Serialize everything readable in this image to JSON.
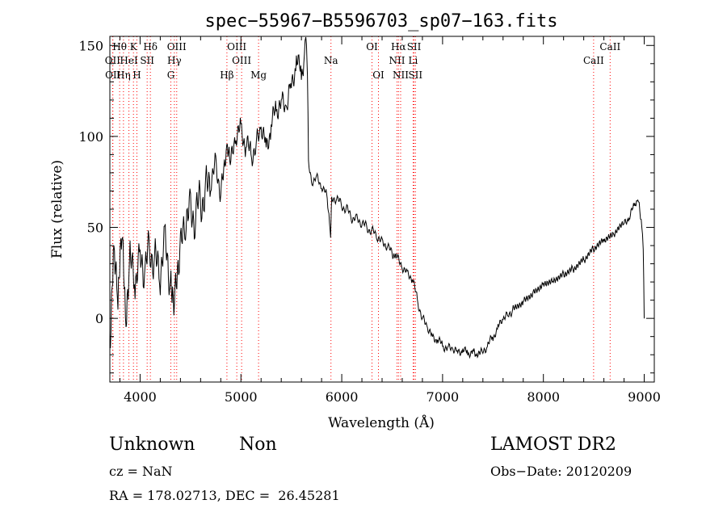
{
  "chart_data": {
    "type": "line",
    "title": "spec−55967−B5596703_sp07−163.fits",
    "xlabel": "Wavelength (Å)",
    "ylabel": "Flux (relative)",
    "xlim": [
      3700,
      9100
    ],
    "ylim": [
      -35,
      155
    ],
    "xticks": [
      4000,
      5000,
      6000,
      7000,
      8000,
      9000
    ],
    "yticks": [
      0,
      50,
      100,
      150
    ],
    "grid": false,
    "line_color": "#000000",
    "marker_color": "#ff0000",
    "series": [
      {
        "x": [
          3700,
          3740,
          3780,
          3820,
          3860,
          3900,
          3950,
          4000,
          4050,
          4100,
          4150,
          4200,
          4250,
          4300,
          4340,
          4400,
          4450,
          4500,
          4550,
          4600,
          4650,
          4700,
          4750,
          4800,
          4860,
          4900,
          4950,
          5000,
          5050,
          5100,
          5150,
          5200,
          5250,
          5300,
          5350,
          5400,
          5450,
          5500,
          5550,
          5600,
          5630,
          5650,
          5660,
          5670,
          5700,
          5750,
          5800,
          5850,
          5890,
          5900,
          5950,
          6000,
          6050,
          6100,
          6150,
          6200,
          6250,
          6300,
          6350,
          6400,
          6450,
          6500,
          6563,
          6600,
          6650,
          6700,
          6750,
          6800,
          6850,
          6900,
          6950,
          7000,
          7050,
          7100,
          7150,
          7200,
          7250,
          7300,
          7340,
          7400,
          7450,
          7500,
          7550,
          7600,
          7650,
          7700,
          7800,
          7900,
          8000,
          8100,
          8200,
          8300,
          8400,
          8500,
          8600,
          8700,
          8800,
          8850,
          8900,
          8930,
          8950,
          8970,
          8990,
          9000
        ],
        "y": [
          -20,
          35,
          5,
          45,
          -10,
          30,
          20,
          35,
          25,
          40,
          30,
          25,
          45,
          20,
          15,
          35,
          55,
          60,
          55,
          65,
          70,
          75,
          85,
          70,
          90,
          85,
          100,
          105,
          95,
          90,
          95,
          105,
          95,
          105,
          115,
          120,
          115,
          130,
          140,
          135,
          145,
          150,
          135,
          85,
          75,
          78,
          72,
          68,
          45,
          65,
          66,
          62,
          60,
          55,
          55,
          52,
          50,
          48,
          45,
          42,
          40,
          35,
          32,
          28,
          25,
          22,
          10,
          0,
          -5,
          -10,
          -12,
          -15,
          -16,
          -17,
          -18,
          -18,
          -19,
          -18,
          -22,
          -18,
          -15,
          -10,
          -5,
          0,
          2,
          5,
          10,
          15,
          20,
          22,
          25,
          28,
          32,
          38,
          42,
          45,
          52,
          55,
          62,
          65,
          62,
          55,
          40,
          0
        ]
      }
    ],
    "lines": [
      {
        "label": "Hθ",
        "wl": 3797,
        "row": 0
      },
      {
        "label": "K",
        "wl": 3934,
        "row": 0
      },
      {
        "label": "Hδ",
        "wl": 4102,
        "row": 0
      },
      {
        "label": "OIII",
        "wl": 4363,
        "row": 0
      },
      {
        "label": "OIII",
        "wl": 4959,
        "row": 0
      },
      {
        "label": "OI",
        "wl": 6300,
        "row": 0
      },
      {
        "label": "Hα",
        "wl": 6563,
        "row": 0
      },
      {
        "label": "SII",
        "wl": 6717,
        "row": 0
      },
      {
        "label": "CaII",
        "wl": 8662,
        "row": 0
      },
      {
        "label": "OII",
        "wl": 3727,
        "row": 1
      },
      {
        "label": "HeI",
        "wl": 3889,
        "row": 1
      },
      {
        "label": "SII",
        "wl": 4070,
        "row": 1
      },
      {
        "label": "Hγ",
        "wl": 4340,
        "row": 1
      },
      {
        "label": "OIII",
        "wl": 5007,
        "row": 1
      },
      {
        "label": "Na",
        "wl": 5893,
        "row": 1
      },
      {
        "label": "NII",
        "wl": 6548,
        "row": 1
      },
      {
        "label": "Li",
        "wl": 6708,
        "row": 1
      },
      {
        "label": "CaII",
        "wl": 8498,
        "row": 1
      },
      {
        "label": "OII",
        "wl": 3730,
        "row": 2
      },
      {
        "label": "Hη",
        "wl": 3835,
        "row": 2
      },
      {
        "label": "H",
        "wl": 3968,
        "row": 2
      },
      {
        "label": "G",
        "wl": 4305,
        "row": 2
      },
      {
        "label": "Hβ",
        "wl": 4861,
        "row": 2
      },
      {
        "label": "Mg",
        "wl": 5175,
        "row": 2
      },
      {
        "label": "OI",
        "wl": 6364,
        "row": 2
      },
      {
        "label": "NII",
        "wl": 6584,
        "row": 2
      },
      {
        "label": "SII",
        "wl": 6731,
        "row": 2
      }
    ]
  },
  "footer": {
    "class": "Unknown",
    "subclass": "Non",
    "survey": "LAMOST DR2",
    "cz": "cz = NaN",
    "obs_date": "Obs−Date: 20120209",
    "radec": "RA = 178.02713, DEC =  26.45281"
  }
}
